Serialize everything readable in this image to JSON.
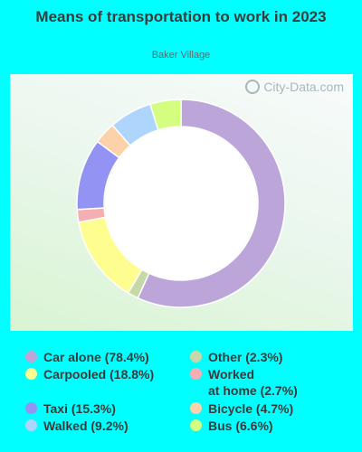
{
  "chart_data": {
    "type": "pie",
    "style": "donut",
    "title": "Means of transportation to work in 2023",
    "subtitle": "Baker Village",
    "slices": [
      {
        "label": "Car alone",
        "value": 78.4,
        "display": "Car alone (78.4%)",
        "color": "#bba5d9"
      },
      {
        "label": "Other",
        "value": 2.3,
        "display": "Other (2.3%)",
        "color": "#c6d8a8"
      },
      {
        "label": "Carpooled",
        "value": 18.8,
        "display": "Carpooled (18.8%)",
        "color": "#fdfd90"
      },
      {
        "label": "Worked at home",
        "value": 2.7,
        "display": "Worked\nat home (2.7%)",
        "color": "#f5aeb1"
      },
      {
        "label": "Taxi",
        "value": 15.3,
        "display": "Taxi (15.3%)",
        "color": "#9393f3"
      },
      {
        "label": "Bicycle",
        "value": 4.7,
        "display": "Bicycle (4.7%)",
        "color": "#fbd2aa"
      },
      {
        "label": "Walked",
        "value": 9.2,
        "display": "Walked (9.2%)",
        "color": "#aed6fd"
      },
      {
        "label": "Bus",
        "value": 6.6,
        "display": "Bus (6.6%)",
        "color": "#d5fd80"
      }
    ],
    "draw_order": [
      "Car alone",
      "Other",
      "Carpooled",
      "Worked at home",
      "Taxi",
      "Bicycle",
      "Walked",
      "Bus"
    ],
    "legend_placement": "bottom"
  },
  "watermark": "City-Data.com"
}
